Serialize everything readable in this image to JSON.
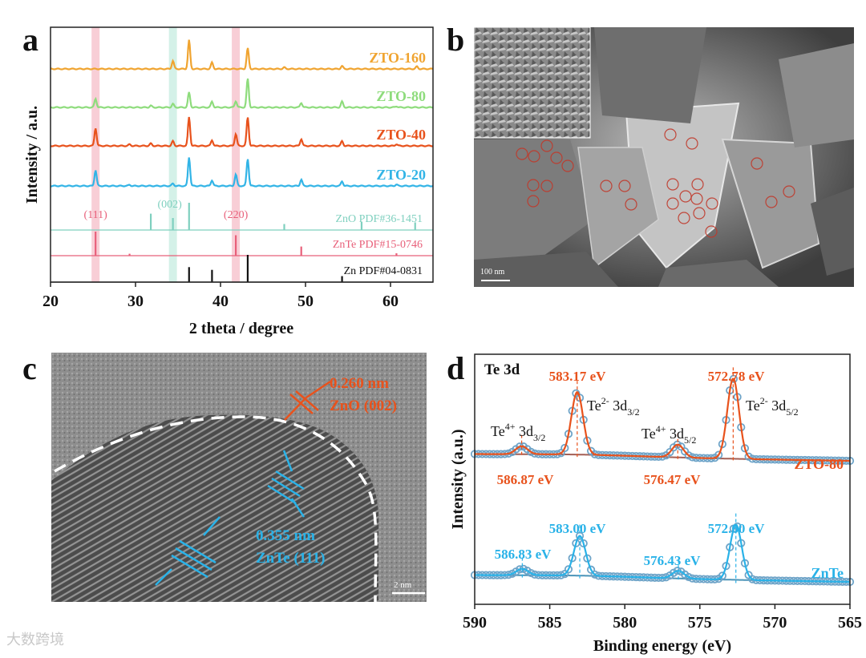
{
  "panels": {
    "a": "a",
    "b": "b",
    "c": "c",
    "d": "d"
  },
  "sem": {
    "scale_label": "100 nm"
  },
  "tem": {
    "scale_label": "2 nm",
    "zno_spacing": "0.260 nm",
    "zno_plane": "ZnO (002)",
    "znte_spacing": "0.355 nm",
    "znte_plane": "ZnTe (111)"
  },
  "watermark": "大数跨境",
  "colors": {
    "zto160": "#f0a430",
    "zto80": "#8edc7c",
    "zto40": "#e8521c",
    "zto20": "#32b4e6",
    "zno_ref": "#7fd0bf",
    "znte_ref": "#e8607a",
    "zn_ref": "#111111",
    "orange_label": "#e8521c",
    "blue_label": "#29b2e8"
  },
  "chart_data": [
    {
      "type": "line",
      "panel": "a",
      "xlabel": "2 theta / degree",
      "ylabel": "Intensity / a.u.",
      "xlim": [
        20,
        65
      ],
      "xticks": [
        20,
        30,
        40,
        50,
        60
      ],
      "highlight_bands": [
        {
          "center": 25.3,
          "color": "#f7c6cf"
        },
        {
          "center": 34.4,
          "color": "#cdeee4"
        },
        {
          "center": 41.8,
          "color": "#f7c6cf"
        }
      ],
      "series": [
        {
          "name": "ZTO-160",
          "color": "#f0a430",
          "peaks": [
            [
              34.4,
              0.28
            ],
            [
              36.3,
              1.0
            ],
            [
              39.0,
              0.22
            ],
            [
              43.2,
              0.72
            ],
            [
              47.5,
              0.05
            ],
            [
              54.3,
              0.1
            ],
            [
              63.1,
              0.08
            ]
          ]
        },
        {
          "name": "ZTO-80",
          "color": "#8edc7c",
          "peaks": [
            [
              25.3,
              0.3
            ],
            [
              31.8,
              0.06
            ],
            [
              34.4,
              0.12
            ],
            [
              36.3,
              0.52
            ],
            [
              39.0,
              0.2
            ],
            [
              41.8,
              0.22
            ],
            [
              43.2,
              1.0
            ],
            [
              49.5,
              0.16
            ],
            [
              54.3,
              0.2
            ],
            [
              60.7,
              0.04
            ]
          ]
        },
        {
          "name": "ZTO-40",
          "color": "#e8521c",
          "peaks": [
            [
              25.3,
              0.62
            ],
            [
              29.3,
              0.05
            ],
            [
              31.8,
              0.08
            ],
            [
              34.4,
              0.16
            ],
            [
              36.3,
              1.0
            ],
            [
              39.0,
              0.2
            ],
            [
              41.8,
              0.42
            ],
            [
              43.2,
              1.0
            ],
            [
              49.5,
              0.24
            ],
            [
              54.3,
              0.16
            ],
            [
              60.7,
              0.06
            ]
          ]
        },
        {
          "name": "ZTO-20",
          "color": "#32b4e6",
          "peaks": [
            [
              25.3,
              0.55
            ],
            [
              29.3,
              0.04
            ],
            [
              34.4,
              0.08
            ],
            [
              36.3,
              1.0
            ],
            [
              39.0,
              0.2
            ],
            [
              41.8,
              0.4
            ],
            [
              43.2,
              0.95
            ],
            [
              49.5,
              0.22
            ],
            [
              54.3,
              0.16
            ],
            [
              60.7,
              0.05
            ]
          ]
        }
      ],
      "references": [
        {
          "name": "ZnO PDF#36-1451",
          "color": "#7fd0bf",
          "lines": [
            [
              31.8,
              0.6
            ],
            [
              34.4,
              0.44
            ],
            [
              36.3,
              1.0
            ],
            [
              47.5,
              0.22
            ],
            [
              56.6,
              0.3
            ],
            [
              62.9,
              0.28
            ]
          ]
        },
        {
          "name": "ZnTe PDF#15-0746",
          "color": "#e8607a",
          "lines": [
            [
              25.3,
              1.0
            ],
            [
              29.3,
              0.08
            ],
            [
              41.8,
              0.85
            ],
            [
              49.5,
              0.38
            ],
            [
              60.7,
              0.1
            ]
          ]
        },
        {
          "name": "Zn PDF#04-0831",
          "color": "#111111",
          "lines": [
            [
              36.3,
              0.55
            ],
            [
              39.0,
              0.45
            ],
            [
              43.2,
              1.0
            ],
            [
              54.3,
              0.22
            ]
          ]
        }
      ],
      "plane_labels": [
        {
          "text": "(111)",
          "x": 25.3,
          "color": "#e8607a"
        },
        {
          "text": "(002)",
          "x": 34.4,
          "color": "#7fd0bf"
        },
        {
          "text": "(220)",
          "x": 41.8,
          "color": "#e8607a"
        }
      ]
    },
    {
      "type": "line",
      "panel": "d",
      "title": "Te 3d",
      "xlabel": "Binding energy (eV)",
      "ylabel": "Intensity (a.u.)",
      "xlim": [
        590,
        565
      ],
      "xticks": [
        590,
        585,
        580,
        575,
        570,
        565
      ],
      "series": [
        {
          "name": "ZTO-80",
          "color": "#e8521c",
          "marker_color": "#6fa4c8",
          "peaks": [
            [
              586.87,
              0.1
            ],
            [
              583.17,
              0.78
            ],
            [
              576.47,
              0.16
            ],
            [
              572.78,
              1.0
            ]
          ],
          "peak_labels": [
            {
              "text": "586.87 eV",
              "x": 586.87
            },
            {
              "text": "583.17 eV",
              "x": 583.17
            },
            {
              "text": "576.47 eV",
              "x": 576.47
            },
            {
              "text": "572.78 eV",
              "x": 572.78
            }
          ]
        },
        {
          "name": "ZnTe",
          "color": "#29b2e8",
          "marker_color": "#6fa4c8",
          "peaks": [
            [
              586.83,
              0.1
            ],
            [
              583.0,
              0.62
            ],
            [
              576.43,
              0.12
            ],
            [
              572.6,
              0.86
            ]
          ],
          "peak_labels": [
            {
              "text": "586.83 eV",
              "x": 586.83
            },
            {
              "text": "583.00 eV",
              "x": 583.0
            },
            {
              "text": "576.43 eV",
              "x": 576.43
            },
            {
              "text": "572.60 eV",
              "x": 572.6
            }
          ]
        }
      ],
      "assignments": [
        {
          "base": "Te",
          "sup": "4+",
          "orbital": "3d",
          "sub": "3/2"
        },
        {
          "base": "Te",
          "sup": "2-",
          "orbital": "3d",
          "sub": "3/2"
        },
        {
          "base": "Te",
          "sup": "4+",
          "orbital": "3d",
          "sub": "5/2"
        },
        {
          "base": "Te",
          "sup": "2-",
          "orbital": "3d",
          "sub": "5/2"
        }
      ]
    }
  ]
}
